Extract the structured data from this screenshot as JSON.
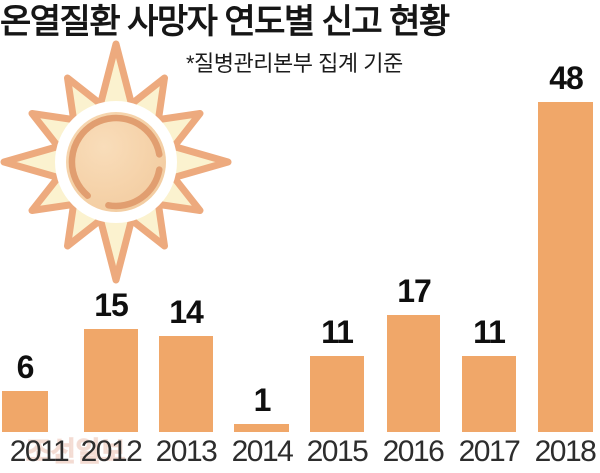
{
  "title": "온열질환 사망자 연도별 신고 현황",
  "subtitle": "*질병관리본부 집계 기준",
  "watermark": "조선일보",
  "icons": {
    "sun": "sun-icon"
  },
  "colors": {
    "bar": "#f0a769",
    "title_text": "#161616",
    "value_label_text": "#0f0f0f",
    "year_label_text": "#2d2d2d",
    "sun_outline": "#edaa7e",
    "sun_body_fill": "#fbf2cf",
    "sun_core_fill": "#f5d2a9",
    "sun_core_highlight": "#f9ddba",
    "sun_core_arc": "#e19e70",
    "background": "#ffffff"
  },
  "chart_data": {
    "type": "bar",
    "title": "온열질환 사망자 연도별 신고 현황",
    "source_note": "*질병관리본부 집계 기준",
    "categories": [
      "2011",
      "2012",
      "2013",
      "2014",
      "2015",
      "2016",
      "2017",
      "2018"
    ],
    "values": [
      6,
      15,
      14,
      1,
      11,
      17,
      11,
      48
    ],
    "xlabel": "",
    "ylabel": "",
    "ylim": [
      0,
      50
    ],
    "grid": false,
    "axes_visible": false,
    "value_labels_visible": true,
    "legend": "none",
    "bar_color": "#f0a769"
  }
}
